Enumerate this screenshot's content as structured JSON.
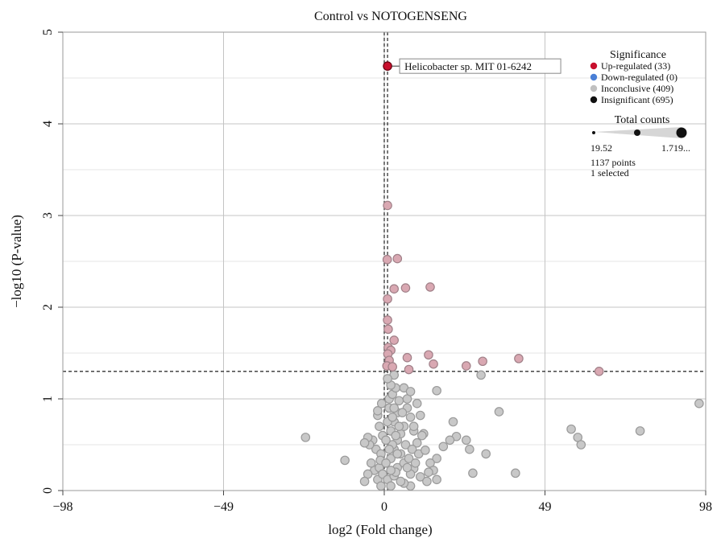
{
  "chart_data": {
    "type": "scatter",
    "title": "Control vs NOTOGENSENG",
    "xlabel": "log2 (Fold change)",
    "ylabel": "−log10 (P-value)",
    "xlim": [
      -98,
      98
    ],
    "ylim": [
      0,
      5
    ],
    "xticks": [
      -98,
      -49,
      0,
      49,
      98
    ],
    "xtick_labels": [
      "−98",
      "−49",
      "0",
      "49",
      "98"
    ],
    "yticks": [
      0,
      1,
      2,
      3,
      4,
      5
    ],
    "ytick_labels": [
      "0",
      "1",
      "2",
      "3",
      "4",
      "5"
    ],
    "threshold_x": [
      0,
      1
    ],
    "threshold_y": 1.3,
    "grid": true,
    "legend_position": "top-right",
    "colors": {
      "up": "#c8102e",
      "up_faded": "#d9a8b2",
      "down": "#4a7fd6",
      "inconclusive": "#c8c8c8",
      "insignificant": "#111111",
      "threshold": "#333333",
      "grid_major": "#c4c4c4",
      "grid_minor": "#e6e6e6"
    },
    "annotation": {
      "label": "Helicobacter sp. MIT 01-6242",
      "x": 1.0,
      "y": 4.63
    },
    "legend": {
      "title": "Significance",
      "items": [
        {
          "label": "Up-regulated (33)",
          "color": "#c8102e"
        },
        {
          "label": "Down-regulated (0)",
          "color": "#4a7fd6"
        },
        {
          "label": "Inconclusive (409)",
          "color": "#c0c0c0"
        },
        {
          "label": "Insignificant (695)",
          "color": "#111111"
        }
      ],
      "size_title": "Total counts",
      "size_min_label": "19.52",
      "size_max_label": "1.719...",
      "points_text": "1137 points",
      "selected_text": "1 selected"
    },
    "series": [
      {
        "name": "Up-regulated",
        "points": [
          [
            1.0,
            4.63
          ],
          [
            1.0,
            3.11
          ],
          [
            0.9,
            2.52
          ],
          [
            4.0,
            2.53
          ],
          [
            3.0,
            2.2
          ],
          [
            6.5,
            2.21
          ],
          [
            14.0,
            2.22
          ],
          [
            1.0,
            2.09
          ],
          [
            1.0,
            1.86
          ],
          [
            1.2,
            1.76
          ],
          [
            3.0,
            1.64
          ],
          [
            1.2,
            1.56
          ],
          [
            2.0,
            1.53
          ],
          [
            1.1,
            1.49
          ],
          [
            1.5,
            1.42
          ],
          [
            7.0,
            1.45
          ],
          [
            13.5,
            1.48
          ],
          [
            0.8,
            1.36
          ],
          [
            2.5,
            1.35
          ],
          [
            7.5,
            1.32
          ],
          [
            15.0,
            1.38
          ],
          [
            25.0,
            1.36
          ],
          [
            30.0,
            1.41
          ],
          [
            41.0,
            1.44
          ],
          [
            65.5,
            1.3
          ]
        ]
      },
      {
        "name": "Inconclusive",
        "points": [
          [
            96.0,
            0.95
          ],
          [
            78.0,
            0.65
          ],
          [
            57.0,
            0.67
          ],
          [
            59.0,
            0.58
          ],
          [
            60.0,
            0.5
          ],
          [
            -24.0,
            0.58
          ],
          [
            -12.0,
            0.33
          ],
          [
            35.0,
            0.86
          ],
          [
            40.0,
            0.19
          ],
          [
            29.5,
            1.26
          ],
          [
            25.0,
            0.55
          ],
          [
            21.0,
            0.75
          ],
          [
            22.0,
            0.59
          ],
          [
            20.0,
            0.55
          ],
          [
            26.0,
            0.45
          ],
          [
            31.0,
            0.4
          ],
          [
            16.0,
            1.09
          ],
          [
            18.0,
            0.48
          ],
          [
            27.0,
            0.19
          ],
          [
            16.0,
            0.35
          ],
          [
            14.0,
            0.3
          ],
          [
            12.0,
            0.62
          ],
          [
            10.0,
            0.52
          ],
          [
            9.0,
            0.24
          ],
          [
            11.0,
            0.15
          ],
          [
            13.0,
            0.1
          ],
          [
            15.0,
            0.22
          ],
          [
            16.0,
            0.12
          ],
          [
            8.0,
            0.05
          ],
          [
            6.0,
            0.08
          ],
          [
            -2.0,
            0.12
          ],
          [
            -3.0,
            0.22
          ],
          [
            -4.0,
            0.3
          ],
          [
            -5.0,
            0.18
          ],
          [
            -6.0,
            0.1
          ],
          [
            -2.5,
            0.45
          ],
          [
            -3.5,
            0.55
          ],
          [
            -4.5,
            0.5
          ],
          [
            -5.0,
            0.58
          ],
          [
            -6.0,
            0.52
          ],
          [
            -1.5,
            0.7
          ],
          [
            -2.0,
            0.82
          ],
          [
            -2.0,
            0.87
          ],
          [
            -1.0,
            0.4
          ],
          [
            -1.5,
            0.25
          ],
          [
            -1.0,
            0.05
          ],
          [
            -0.5,
            0.6
          ],
          [
            -0.8,
            0.95
          ],
          [
            -0.5,
            0.18
          ],
          [
            -1.2,
            0.33
          ],
          [
            1.0,
            0.12
          ],
          [
            2.0,
            0.05
          ],
          [
            3.0,
            0.16
          ],
          [
            4.0,
            0.25
          ],
          [
            5.0,
            0.1
          ],
          [
            2.0,
            0.35
          ],
          [
            3.0,
            0.45
          ],
          [
            4.0,
            0.55
          ],
          [
            5.0,
            0.4
          ],
          [
            6.0,
            0.3
          ],
          [
            2.0,
            0.65
          ],
          [
            3.0,
            0.75
          ],
          [
            4.0,
            0.85
          ],
          [
            5.0,
            0.62
          ],
          [
            6.0,
            0.7
          ],
          [
            7.0,
            0.9
          ],
          [
            8.0,
            0.8
          ],
          [
            9.0,
            0.65
          ],
          [
            10.0,
            0.95
          ],
          [
            11.0,
            0.82
          ],
          [
            1.5,
            1.0
          ],
          [
            2.5,
            1.05
          ],
          [
            3.5,
            1.12
          ],
          [
            4.5,
            0.98
          ],
          [
            6.0,
            1.12
          ],
          [
            7.0,
            1.0
          ],
          [
            8.0,
            1.08
          ],
          [
            2.0,
            1.15
          ],
          [
            3.0,
            1.26
          ],
          [
            1.0,
            1.22
          ],
          [
            1.5,
            0.9
          ],
          [
            2.5,
            0.5
          ],
          [
            3.5,
            0.2
          ],
          [
            4.5,
            0.7
          ],
          [
            6.5,
            0.5
          ],
          [
            7.5,
            0.35
          ],
          [
            8.5,
            0.45
          ],
          [
            9.5,
            0.3
          ],
          [
            10.5,
            0.4
          ],
          [
            12.5,
            0.44
          ],
          [
            13.5,
            0.2
          ],
          [
            11.5,
            0.6
          ],
          [
            9.0,
            0.7
          ],
          [
            8.0,
            0.18
          ],
          [
            7.0,
            0.25
          ],
          [
            5.5,
            0.85
          ],
          [
            4.0,
            0.4
          ],
          [
            3.0,
            0.9
          ],
          [
            2.0,
            0.22
          ],
          [
            1.0,
            0.75
          ],
          [
            0.5,
            0.55
          ],
          [
            0.5,
            0.3
          ],
          [
            1.5,
            0.45
          ],
          [
            2.5,
            0.8
          ],
          [
            3.5,
            0.6
          ]
        ]
      }
    ]
  }
}
